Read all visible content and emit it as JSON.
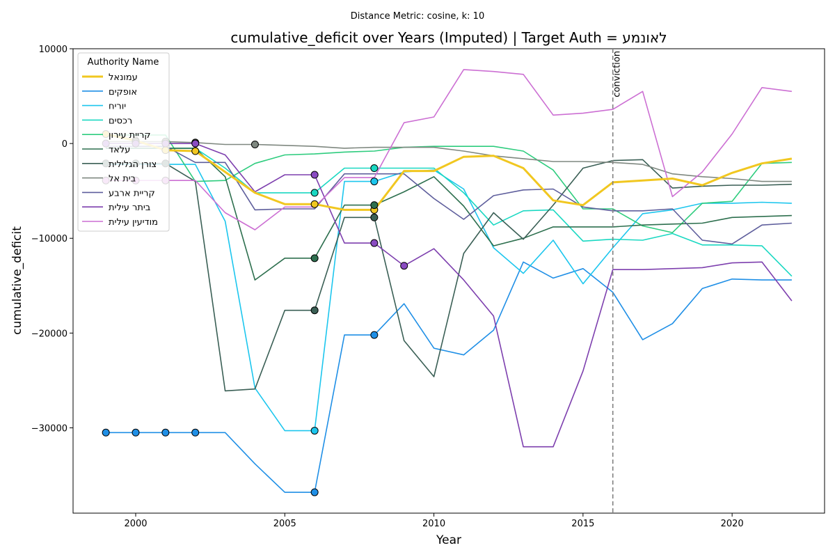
{
  "chart_data": {
    "type": "line",
    "suptitle": "Distance Metric: cosine, k: 10",
    "title": "cumulative_deficit over Years (Imputed) | Target Auth = לאונמע",
    "xlabel": "Year",
    "ylabel": "cumulative_deficit",
    "xlim": [
      1997.9,
      2023.1
    ],
    "ylim": [
      -39000,
      10000
    ],
    "xticks": [
      2000,
      2005,
      2010,
      2015,
      2020
    ],
    "yticks": [
      10000,
      0,
      -10000,
      -20000,
      -30000
    ],
    "ytick_labels": [
      "10000",
      "0",
      "−10000",
      "−20000",
      "−30000"
    ],
    "legend_title": "Authority Name",
    "legend_position": "upper-left",
    "vline": {
      "x": 2016,
      "label": "conviction",
      "color": "#808080"
    },
    "x": [
      1999,
      2000,
      2001,
      2002,
      2003,
      2004,
      2005,
      2006,
      2007,
      2008,
      2009,
      2010,
      2011,
      2012,
      2013,
      2014,
      2015,
      2016,
      2017,
      2018,
      2019,
      2020,
      2021,
      2022
    ],
    "series": [
      {
        "name": "עמונאל",
        "color": "#f1c720",
        "width": 3,
        "values": [
          1000,
          300,
          -700,
          -800,
          -3000,
          -5200,
          -6400,
          -6400,
          -7000,
          -7000,
          -2900,
          -2900,
          -1400,
          -1300,
          -2600,
          -6000,
          -6500,
          -4100,
          -3900,
          -3700,
          -4400,
          -3100,
          -2100,
          -1600
        ],
        "markers": [
          1999,
          2000,
          2001,
          2002,
          2006,
          2008
        ],
        "marker_color": "#f1c720"
      },
      {
        "name": "אופקים",
        "color": "#1f8fe6",
        "width": 1.6,
        "values": [
          -30500,
          -30500,
          -30500,
          -30500,
          -30500,
          -33800,
          -36800,
          -36800,
          -20200,
          -20200,
          -16900,
          -21600,
          -22300,
          -19700,
          -12500,
          -14200,
          -13200,
          -15700,
          -20700,
          -19000,
          -15300,
          -14300,
          -14400,
          -14400
        ],
        "markers": [
          1999,
          2000,
          2001,
          2002,
          2006,
          2008
        ],
        "marker_color": "#1f8fe6"
      },
      {
        "name": "יוריח",
        "color": "#1cc6ee",
        "width": 1.6,
        "values": [
          -2200,
          -2200,
          -2200,
          -2200,
          -8200,
          -25800,
          -30300,
          -30300,
          -4000,
          -4000,
          -3000,
          -2800,
          -4800,
          -11000,
          -13700,
          -10200,
          -14800,
          -11000,
          -7400,
          -7000,
          -6300,
          -6300,
          -6200,
          -6300
        ],
        "markers": [
          2006,
          2008
        ],
        "marker_color": "#1cc6ee"
      },
      {
        "name": "רכסים",
        "color": "#1ad8c2",
        "width": 1.6,
        "values": [
          -500,
          -500,
          -500,
          -500,
          -2600,
          -5200,
          -5200,
          -5200,
          -2600,
          -2600,
          -2600,
          -2600,
          -5200,
          -8600,
          -7100,
          -7000,
          -10300,
          -10100,
          -10200,
          -9500,
          -10700,
          -10700,
          -10800,
          -14000
        ],
        "markers": [
          2006,
          2008
        ],
        "marker_color": "#1ad8c2"
      },
      {
        "name": "קריית עירון",
        "color": "#2ecc7e",
        "width": 1.6,
        "values": [
          900,
          900,
          900,
          -4000,
          -3900,
          -2100,
          -1200,
          -1100,
          -900,
          -800,
          -400,
          -300,
          -300,
          -300,
          -800,
          -2800,
          -6900,
          -6900,
          -8700,
          -9400,
          -6300,
          -6100,
          -2100,
          -2000
        ],
        "markers": [],
        "marker_color": "#2ecc7e"
      },
      {
        "name": "עלאד",
        "color": "#2d6f4e",
        "width": 1.6,
        "values": [
          -500,
          -500,
          -500,
          -500,
          -3500,
          -14400,
          -12100,
          -12100,
          -6500,
          -6500,
          -5100,
          -3500,
          -6600,
          -10800,
          -10000,
          -8800,
          -8800,
          -8800,
          -8600,
          -8500,
          -8400,
          -7800,
          -7700,
          -7600
        ],
        "markers": [
          2006,
          2008
        ],
        "marker_color": "#2d6f4e"
      },
      {
        "name": "צורן הגלילית",
        "color": "#3a5f55",
        "width": 1.6,
        "values": [
          -2100,
          -2100,
          -2100,
          -4000,
          -26100,
          -25900,
          -17600,
          -17600,
          -7800,
          -7800,
          -20800,
          -24600,
          -11600,
          -7300,
          -10100,
          -6500,
          -2600,
          -1800,
          -1700,
          -4700,
          -4500,
          -4400,
          -4400,
          -4300
        ],
        "markers": [
          1999,
          2000,
          2001,
          2006,
          2008
        ],
        "marker_color": "#3a5f55"
      },
      {
        "name": "בית אל",
        "color": "#7f8880",
        "width": 1.6,
        "values": [
          200,
          200,
          200,
          100,
          -100,
          -100,
          -200,
          -300,
          -500,
          -400,
          -400,
          -400,
          -800,
          -1300,
          -1600,
          -1900,
          -1900,
          -2000,
          -2200,
          -3200,
          -3500,
          -3700,
          -4000,
          -4000
        ],
        "markers": [
          2000,
          2001,
          2002,
          2004
        ],
        "marker_color": "#7f8880"
      },
      {
        "name": "קריית ארבע",
        "color": "#5e5e9c",
        "width": 1.6,
        "values": [
          -300,
          -300,
          -300,
          -2000,
          -2000,
          -7000,
          -6900,
          -6900,
          -3200,
          -3200,
          -3200,
          -5800,
          -8000,
          -5500,
          -4900,
          -4800,
          -6700,
          -7100,
          -7100,
          -6900,
          -10200,
          -10600,
          -8600,
          -8400
        ],
        "markers": [],
        "marker_color": "#5e5e9c"
      },
      {
        "name": "ביתר עילית",
        "color": "#7d3fae",
        "width": 1.6,
        "values": [
          0,
          0,
          0,
          0,
          -1200,
          -5100,
          -3300,
          -3300,
          -10500,
          -10500,
          -12900,
          -11100,
          -14400,
          -18200,
          -32000,
          -32000,
          -24000,
          -13300,
          -13300,
          -13200,
          -13100,
          -12600,
          -12500,
          -16600
        ],
        "markers": [
          1999,
          2000,
          2001,
          2002,
          2006,
          2008,
          2009
        ],
        "marker_color": "#8a4bc2"
      },
      {
        "name": "מודיעין עילית",
        "color": "#cc6fd3",
        "width": 1.6,
        "values": [
          -3900,
          -3900,
          -3900,
          -3900,
          -7300,
          -9100,
          -6700,
          -6700,
          -3600,
          -3600,
          2200,
          2800,
          7800,
          7600,
          7300,
          3000,
          3200,
          3600,
          5500,
          -5600,
          -3000,
          1000,
          5900,
          5500
        ],
        "markers": [
          1999,
          2000,
          2001
        ],
        "marker_color": "#cc6fd3"
      }
    ]
  }
}
